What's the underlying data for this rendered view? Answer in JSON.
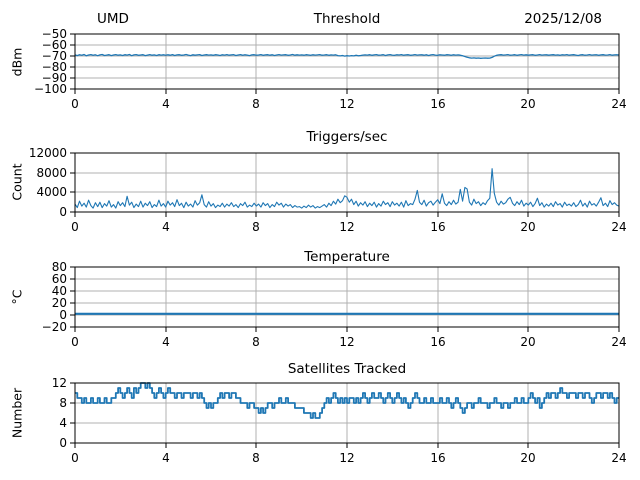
{
  "figure": {
    "background": "#ffffff",
    "line_color": "#1f77b4",
    "grid_color": "#b0b0b0",
    "spine_color": "#000000",
    "text_color": "#000000"
  },
  "chart_data": [
    {
      "type": "line",
      "title": "Threshold",
      "title_left": "UMD",
      "title_right": "2025/12/08",
      "ylabel": "dBm",
      "xlim": [
        0,
        24
      ],
      "ylim": [
        -100,
        -50
      ],
      "xticks": [
        0,
        4,
        8,
        12,
        16,
        20,
        24
      ],
      "yticks": [
        -50,
        -60,
        -70,
        -80,
        -90,
        -100
      ],
      "grid": true,
      "legend": "none",
      "line_width": 1.3,
      "step": false,
      "x0": 0,
      "dx": 0.1,
      "values": [
        -69.0,
        -69.6,
        -68.8,
        -69.3,
        -68.6,
        -69.8,
        -69.1,
        -68.7,
        -69.4,
        -68.9,
        -69.7,
        -69.0,
        -68.6,
        -69.5,
        -69.2,
        -68.8,
        -69.6,
        -69.1,
        -68.7,
        -69.3,
        -69.0,
        -69.5,
        -68.8,
        -69.2,
        -68.6,
        -69.7,
        -69.0,
        -68.7,
        -69.4,
        -69.1,
        -68.8,
        -69.6,
        -69.2,
        -68.7,
        -69.3,
        -69.0,
        -69.5,
        -68.8,
        -69.2,
        -68.9,
        -69.4,
        -68.9,
        -69.3,
        -68.7,
        -69.5,
        -69.0,
        -68.8,
        -69.4,
        -69.1,
        -68.6,
        -69.2,
        -69.6,
        -68.9,
        -69.3,
        -69.0,
        -68.7,
        -69.5,
        -69.1,
        -68.8,
        -69.2,
        -69.0,
        -69.4,
        -68.8,
        -69.1,
        -69.5,
        -68.9,
        -69.2,
        -68.7,
        -69.3,
        -69.0,
        -68.8,
        -69.5,
        -69.1,
        -68.7,
        -69.4,
        -68.9,
        -69.2,
        -69.6,
        -69.0,
        -68.8,
        -69.3,
        -69.1,
        -68.7,
        -69.4,
        -69.0,
        -68.8,
        -69.3,
        -68.9,
        -69.5,
        -69.1,
        -68.7,
        -69.2,
        -69.0,
        -68.8,
        -69.4,
        -69.1,
        -68.6,
        -69.3,
        -68.9,
        -69.2,
        -69.0,
        -69.3,
        -68.8,
        -69.1,
        -69.4,
        -68.9,
        -69.2,
        -69.0,
        -68.7,
        -69.3,
        -69.1,
        -68.8,
        -69.4,
        -69.0,
        -69.2,
        -68.9,
        -69.6,
        -69.9,
        -69.5,
        -70.1,
        -69.7,
        -70.0,
        -69.6,
        -69.9,
        -69.4,
        -69.8,
        -69.5,
        -69.2,
        -69.0,
        -69.2,
        -68.8,
        -69.4,
        -69.0,
        -68.7,
        -69.3,
        -69.1,
        -68.8,
        -69.5,
        -69.0,
        -68.7,
        -69.2,
        -69.4,
        -68.9,
        -69.1,
        -68.7,
        -69.3,
        -69.0,
        -68.8,
        -69.4,
        -69.1,
        -68.7,
        -69.2,
        -69.0,
        -68.9,
        -69.3,
        -68.8,
        -69.5,
        -69.0,
        -68.7,
        -69.2,
        -69.4,
        -68.9,
        -69.1,
        -69.3,
        -68.8,
        -69.0,
        -69.4,
        -68.9,
        -69.2,
        -69.0,
        -69.3,
        -69.8,
        -70.5,
        -71.2,
        -71.6,
        -71.9,
        -71.7,
        -72.0,
        -71.8,
        -72.1,
        -71.9,
        -71.8,
        -72.0,
        -71.9,
        -71.3,
        -70.2,
        -69.4,
        -69.0,
        -68.8,
        -69.2,
        -69.0,
        -68.7,
        -69.3,
        -69.1,
        -68.8,
        -69.4,
        -69.0,
        -68.7,
        -69.2,
        -68.9,
        -69.3,
        -69.0,
        -68.8,
        -69.4,
        -69.1,
        -68.7,
        -69.2,
        -69.0,
        -68.9,
        -69.3,
        -69.0,
        -68.8,
        -69.2,
        -69.0,
        -69.4,
        -68.9,
        -69.1,
        -68.7,
        -69.3,
        -69.0,
        -68.8,
        -69.2,
        -69.5,
        -69.0,
        -68.8,
        -69.3,
        -69.1,
        -68.7,
        -69.2,
        -69.0,
        -68.9,
        -69.4,
        -69.0,
        -68.8,
        -69.2,
        -69.1,
        -68.7,
        -69.3,
        -69.0,
        -68.9,
        -69.1
      ]
    },
    {
      "type": "line",
      "title": "Triggers/sec",
      "ylabel": "Count",
      "xlim": [
        0,
        24
      ],
      "ylim": [
        0,
        12000
      ],
      "xticks": [
        0,
        4,
        8,
        12,
        16,
        20,
        24
      ],
      "yticks": [
        0,
        4000,
        8000,
        12000
      ],
      "grid": true,
      "legend": "none",
      "line_width": 1.1,
      "step": false,
      "x0": 0,
      "dx": 0.1,
      "values": [
        1600,
        900,
        2200,
        1200,
        1800,
        1000,
        2400,
        1300,
        800,
        1900,
        1100,
        2000,
        900,
        1700,
        1200,
        2300,
        1000,
        1500,
        800,
        2100,
        1300,
        1900,
        1100,
        3200,
        1400,
        2000,
        900,
        1600,
        1100,
        2200,
        1000,
        1800,
        1300,
        2100,
        900,
        1500,
        1100,
        2400,
        1200,
        1700,
        1000,
        2200,
        1400,
        1900,
        1100,
        2500,
        1300,
        1800,
        900,
        2000,
        1200,
        1600,
        1000,
        2300,
        1400,
        1900,
        3500,
        1500,
        1000,
        2100,
        1200,
        1700,
        900,
        1400,
        1100,
        1800,
        1000,
        1600,
        1200,
        1900,
        1100,
        1500,
        900,
        1700,
        1300,
        2000,
        1000,
        1400,
        1100,
        1800,
        1200,
        1600,
        1000,
        1900,
        1300,
        1700,
        900,
        1500,
        1100,
        2000,
        1400,
        1800,
        1000,
        1600,
        1200,
        1500,
        900,
        1300,
        1000,
        1100,
        800,
        1200,
        900,
        1400,
        1000,
        1300,
        800,
        1100,
        900,
        1200,
        1500,
        1000,
        1800,
        1300,
        2200,
        1600,
        2600,
        1900,
        2300,
        3300,
        3000,
        2000,
        2600,
        1500,
        2200,
        1200,
        1900,
        1400,
        2100,
        1100,
        1800,
        1300,
        2000,
        1000,
        1700,
        1200,
        2200,
        1500,
        1900,
        1100,
        2100,
        1400,
        1800,
        1200,
        2000,
        1000,
        2300,
        1300,
        1700,
        1500,
        2600,
        4400,
        2000,
        1500,
        2400,
        1200,
        1900,
        2200,
        1400,
        2000,
        2500,
        1700,
        3700,
        1800,
        1300,
        2100,
        1500,
        2400,
        1600,
        2000,
        4600,
        2200,
        5000,
        4700,
        2000,
        1400,
        2600,
        1700,
        2100,
        1300,
        1900,
        1500,
        2300,
        2800,
        8800,
        3800,
        2000,
        1400,
        2200,
        1600,
        1900,
        2600,
        3000,
        1800,
        1300,
        2100,
        1500,
        2400,
        1200,
        1800,
        1400,
        2000,
        1100,
        1700,
        2800,
        1300,
        1900,
        1000,
        1600,
        1200,
        1800,
        1100,
        2100,
        1400,
        1700,
        1000,
        2000,
        1300,
        1600,
        1200,
        1900,
        1100,
        1500,
        2400,
        1200,
        1800,
        1000,
        2200,
        1400,
        1700,
        1200,
        2000,
        2900,
        1300,
        1800,
        1100,
        2300,
        1500,
        1900,
        1400,
        1200
      ]
    },
    {
      "type": "line",
      "title": "Temperature",
      "ylabel": "°C",
      "xlim": [
        0,
        24
      ],
      "ylim": [
        -20,
        80
      ],
      "xticks": [
        0,
        4,
        8,
        12,
        16,
        20,
        24
      ],
      "yticks": [
        -20,
        0,
        20,
        40,
        60,
        80
      ],
      "grid": true,
      "legend": "none",
      "line_width": 2.2,
      "step": false,
      "x0": 0,
      "dx": 24,
      "values": [
        2,
        2
      ]
    },
    {
      "type": "line",
      "title": "Satellites Tracked",
      "ylabel": "Number",
      "xlim": [
        0,
        24
      ],
      "ylim": [
        0,
        12
      ],
      "xticks": [
        0,
        4,
        8,
        12,
        16,
        20,
        24
      ],
      "yticks": [
        0,
        4,
        8,
        12
      ],
      "grid": true,
      "legend": "none",
      "line_width": 1.8,
      "step": true,
      "x0": 0,
      "dx": 0.1,
      "values": [
        10,
        9,
        9,
        8,
        9,
        8,
        8,
        9,
        8,
        8,
        9,
        8,
        8,
        9,
        8,
        8,
        9,
        9,
        10,
        11,
        10,
        9,
        10,
        11,
        10,
        9,
        11,
        10,
        11,
        12,
        12,
        11,
        12,
        11,
        10,
        9,
        10,
        11,
        10,
        9,
        10,
        11,
        10,
        10,
        9,
        10,
        10,
        9,
        10,
        10,
        10,
        9,
        10,
        10,
        9,
        10,
        9,
        8,
        7,
        8,
        7,
        8,
        8,
        9,
        10,
        9,
        10,
        10,
        9,
        10,
        10,
        9,
        9,
        8,
        8,
        8,
        7,
        8,
        8,
        7,
        7,
        6,
        7,
        6,
        7,
        8,
        8,
        7,
        8,
        8,
        9,
        8,
        8,
        9,
        8,
        8,
        8,
        7,
        7,
        7,
        7,
        6,
        6,
        6,
        5,
        6,
        5,
        5,
        6,
        7,
        8,
        9,
        8,
        9,
        10,
        9,
        8,
        9,
        8,
        9,
        8,
        9,
        9,
        8,
        9,
        8,
        9,
        10,
        9,
        8,
        9,
        10,
        9,
        9,
        10,
        9,
        8,
        9,
        10,
        9,
        8,
        9,
        10,
        9,
        8,
        9,
        8,
        7,
        8,
        9,
        10,
        9,
        8,
        8,
        9,
        8,
        8,
        9,
        8,
        8,
        8,
        9,
        8,
        8,
        9,
        8,
        7,
        8,
        9,
        8,
        7,
        6,
        7,
        8,
        8,
        7,
        8,
        8,
        9,
        8,
        8,
        8,
        7,
        8,
        8,
        9,
        8,
        8,
        7,
        8,
        8,
        7,
        8,
        8,
        9,
        8,
        8,
        9,
        8,
        8,
        9,
        10,
        9,
        8,
        9,
        7,
        8,
        9,
        10,
        9,
        10,
        10,
        9,
        10,
        11,
        10,
        10,
        9,
        10,
        10,
        10,
        9,
        10,
        10,
        9,
        10,
        10,
        9,
        8,
        9,
        10,
        10,
        9,
        10,
        10,
        9,
        10,
        9,
        8,
        9,
        9
      ]
    }
  ]
}
